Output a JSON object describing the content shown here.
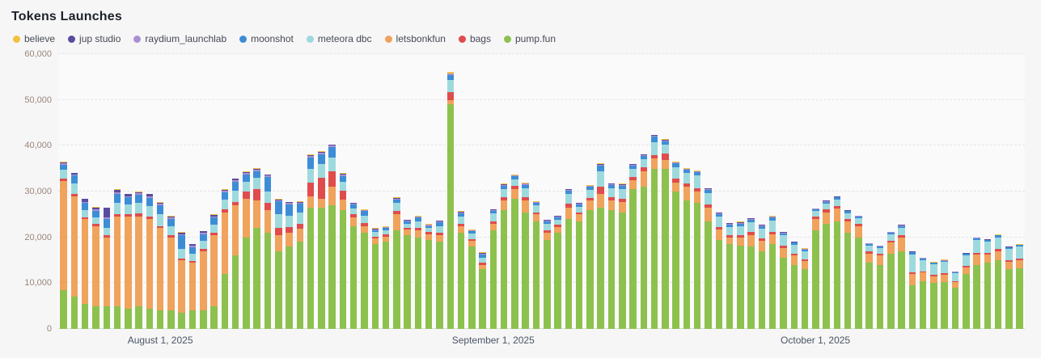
{
  "page": {
    "title": "Tokens Launches",
    "background": "#f6f6f7"
  },
  "legend": [
    {
      "label": "believe",
      "color": "#f3c13f"
    },
    {
      "label": "jup studio",
      "color": "#5b4b9e"
    },
    {
      "label": "raydium_launchlab",
      "color": "#a98fd1"
    },
    {
      "label": "moonshot",
      "color": "#3d8dd6"
    },
    {
      "label": "meteora dbc",
      "color": "#9edadd"
    },
    {
      "label": "letsbonkfun",
      "color": "#f0a35c"
    },
    {
      "label": "bags",
      "color": "#e04c4c"
    },
    {
      "label": "pump.fun",
      "color": "#8dc14e"
    }
  ],
  "colors": {
    "grid_line": "#e3e4e6",
    "axis_line": "#d8d9db",
    "y_label": "#9b8578",
    "x_label": "#4b5563",
    "title": "#1d2129",
    "legend_text": "#454a52",
    "plot_background": "#fafafb"
  },
  "chart_data": {
    "type": "bar",
    "stacked": true,
    "title": "Tokens Launches",
    "xlabel": "",
    "ylabel": "",
    "ylim": [
      0,
      60000
    ],
    "ytick_labels": [
      "0",
      "10,000",
      "20,000",
      "30,000",
      "40,000",
      "50,000",
      "60,000"
    ],
    "grid": true,
    "legend_position": "top-left",
    "bar_count": 90,
    "xticks": [
      {
        "label": "August 1, 2025",
        "index": 9
      },
      {
        "label": "September 1, 2025",
        "index": 40
      },
      {
        "label": "October 1, 2025",
        "index": 70
      }
    ],
    "series": [
      {
        "name": "pump.fun",
        "color": "#8dc14e",
        "values": [
          8500,
          7000,
          5500,
          5000,
          5000,
          5000,
          4500,
          5000,
          4500,
          4000,
          4000,
          3500,
          4000,
          4000,
          5000,
          12000,
          16000,
          20000,
          22000,
          21000,
          17000,
          18000,
          19000,
          26500,
          26500,
          27000,
          26000,
          22500,
          21000,
          18500,
          19000,
          21500,
          20500,
          20000,
          19500,
          19000,
          49000,
          21000,
          18000,
          13000,
          21500,
          26000,
          28500,
          25500,
          23500,
          19500,
          21000,
          24000,
          23500,
          26000,
          26500,
          26000,
          25500,
          30500,
          31000,
          35000,
          35000,
          30000,
          28000,
          27500,
          23500,
          19500,
          18500,
          18200,
          18000,
          17000,
          18500,
          15500,
          14000,
          13000,
          21500,
          23000,
          23500,
          21000,
          20000,
          14500,
          14000,
          16500,
          17000,
          9500,
          10500,
          10000,
          10200,
          9000,
          12000,
          14000,
          14500,
          15000,
          13000,
          13200
        ]
      },
      {
        "name": "letsbonkfun",
        "color": "#f0a35c",
        "values": [
          23800,
          22000,
          18500,
          17500,
          15000,
          19500,
          20000,
          19500,
          19500,
          18000,
          16000,
          11500,
          10500,
          13000,
          15500,
          13500,
          11000,
          8500,
          6000,
          5000,
          3500,
          3000,
          2800,
          2500,
          2000,
          4000,
          2200,
          1800,
          1500,
          1200,
          1200,
          3500,
          1200,
          1500,
          1200,
          1500,
          1000,
          1500,
          1200,
          1000,
          1500,
          2000,
          2000,
          2500,
          1500,
          1500,
          1200,
          2500,
          1500,
          2000,
          3000,
          2000,
          2200,
          2000,
          3500,
          2200,
          1800,
          2000,
          3000,
          2500,
          3000,
          2200,
          1500,
          1800,
          2500,
          2200,
          2200,
          2200,
          2000,
          1800,
          2500,
          2500,
          2800,
          2500,
          2400,
          2000,
          2000,
          2300,
          3000,
          2500,
          1800,
          1500,
          1600,
          1200,
          1500,
          2200,
          1800,
          2000,
          1700,
          1800
        ]
      },
      {
        "name": "bags",
        "color": "#e04c4c",
        "values": [
          600,
          500,
          400,
          400,
          400,
          500,
          500,
          700,
          600,
          500,
          500,
          400,
          400,
          400,
          500,
          600,
          700,
          1500,
          2500,
          1500,
          1500,
          1200,
          1200,
          3000,
          4500,
          3500,
          2000,
          800,
          700,
          500,
          400,
          700,
          400,
          500,
          400,
          500,
          1800,
          500,
          400,
          400,
          500,
          700,
          700,
          700,
          500,
          500,
          500,
          800,
          500,
          600,
          1500,
          700,
          700,
          700,
          800,
          800,
          1500,
          800,
          800,
          700,
          700,
          600,
          500,
          500,
          600,
          500,
          500,
          500,
          400,
          400,
          500,
          600,
          600,
          500,
          500,
          400,
          400,
          400,
          500,
          400,
          300,
          300,
          300,
          250,
          300,
          400,
          350,
          400,
          300,
          300
        ]
      },
      {
        "name": "meteora dbc",
        "color": "#9edadd",
        "values": [
          1800,
          2200,
          1600,
          1500,
          1600,
          2500,
          2200,
          2300,
          2200,
          2500,
          2000,
          2000,
          1500,
          1800,
          1800,
          2200,
          2500,
          2200,
          2500,
          2500,
          3000,
          2500,
          2500,
          3000,
          3000,
          3000,
          2000,
          1200,
          1500,
          900,
          900,
          1800,
          900,
          1500,
          900,
          1500,
          2500,
          1500,
          1200,
          1200,
          1700,
          1800,
          1500,
          2000,
          1500,
          1500,
          1200,
          2200,
          1200,
          1800,
          3500,
          2000,
          2200,
          1800,
          1800,
          2800,
          2000,
          2500,
          2200,
          2800,
          2500,
          2200,
          1800,
          2000,
          2200,
          2200,
          2500,
          2200,
          2000,
          1800,
          1200,
          1300,
          1400,
          1300,
          1200,
          1300,
          1300,
          1500,
          1600,
          3800,
          2400,
          2300,
          2500,
          1700,
          2300,
          2800,
          2400,
          2600,
          2500,
          2700
        ]
      },
      {
        "name": "moonshot",
        "color": "#3d8dd6",
        "values": [
          1200,
          1800,
          1500,
          1400,
          2000,
          2000,
          1500,
          1800,
          1800,
          2000,
          1500,
          3000,
          1500,
          1500,
          1500,
          1500,
          2000,
          1500,
          1500,
          3200,
          2800,
          2500,
          1800,
          2500,
          2200,
          2200,
          1200,
          800,
          1000,
          500,
          500,
          800,
          500,
          800,
          500,
          800,
          1200,
          800,
          500,
          700,
          600,
          800,
          600,
          800,
          500,
          500,
          500,
          700,
          500,
          600,
          1200,
          700,
          700,
          700,
          700,
          1200,
          700,
          800,
          700,
          700,
          700,
          600,
          500,
          500,
          500,
          500,
          600,
          400,
          400,
          350,
          400,
          400,
          400,
          400,
          400,
          300,
          300,
          300,
          400,
          500,
          350,
          300,
          300,
          250,
          300,
          400,
          350,
          400,
          300,
          300
        ]
      },
      {
        "name": "raydium_launchlab",
        "color": "#a98fd1",
        "values": [
          300,
          300,
          300,
          300,
          400,
          400,
          300,
          300,
          300,
          300,
          300,
          300,
          300,
          300,
          300,
          300,
          300,
          300,
          300,
          300,
          300,
          300,
          300,
          300,
          300,
          300,
          300,
          200,
          200,
          200,
          200,
          200,
          200,
          200,
          200,
          200,
          200,
          200,
          200,
          200,
          200,
          200,
          200,
          200,
          200,
          200,
          200,
          200,
          200,
          200,
          200,
          200,
          200,
          200,
          200,
          200,
          200,
          200,
          200,
          200,
          200,
          200,
          200,
          200,
          200,
          200,
          200,
          200,
          150,
          150,
          150,
          150,
          150,
          150,
          150,
          150,
          150,
          150,
          150,
          150,
          150,
          100,
          100,
          100,
          100,
          100,
          100,
          100,
          100,
          100
        ]
      },
      {
        "name": "jup studio",
        "color": "#5b4b9e",
        "values": [
          200,
          200,
          600,
          400,
          2000,
          500,
          400,
          300,
          500,
          300,
          300,
          300,
          300,
          300,
          300,
          300,
          300,
          300,
          200,
          200,
          200,
          200,
          200,
          200,
          200,
          200,
          200,
          200,
          100,
          100,
          100,
          100,
          100,
          100,
          100,
          100,
          100,
          100,
          100,
          100,
          100,
          100,
          100,
          100,
          100,
          100,
          100,
          100,
          100,
          100,
          100,
          100,
          100,
          100,
          100,
          100,
          100,
          100,
          100,
          100,
          100,
          100,
          100,
          100,
          100,
          100,
          100,
          100,
          50,
          50,
          50,
          50,
          50,
          50,
          50,
          50,
          50,
          50,
          50,
          50,
          50,
          50,
          50,
          50,
          50,
          50,
          50,
          50,
          50,
          50
        ]
      },
      {
        "name": "believe",
        "color": "#f3c13f",
        "values": [
          100,
          100,
          100,
          100,
          100,
          100,
          100,
          100,
          100,
          100,
          100,
          100,
          100,
          100,
          100,
          100,
          100,
          100,
          100,
          100,
          100,
          100,
          100,
          100,
          100,
          100,
          100,
          100,
          100,
          100,
          100,
          100,
          100,
          100,
          100,
          100,
          300,
          100,
          100,
          100,
          100,
          100,
          100,
          100,
          100,
          100,
          100,
          100,
          100,
          100,
          100,
          100,
          100,
          100,
          100,
          100,
          100,
          100,
          100,
          100,
          100,
          100,
          100,
          100,
          100,
          100,
          100,
          100,
          50,
          50,
          50,
          50,
          50,
          50,
          50,
          50,
          50,
          50,
          50,
          50,
          50,
          50,
          50,
          50,
          50,
          50,
          50,
          50,
          50,
          50
        ]
      }
    ]
  }
}
